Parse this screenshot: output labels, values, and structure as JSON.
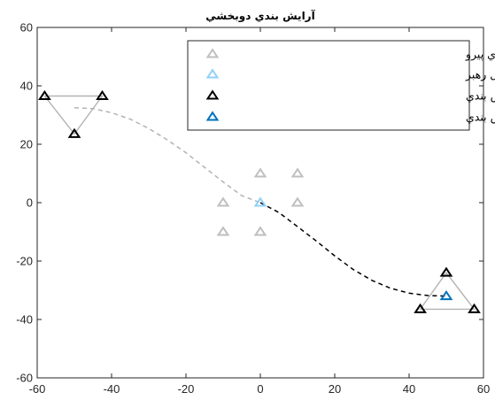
{
  "chart_data": {
    "type": "scatter",
    "title": "آرايش بندي دوبخشي",
    "xlabel": "",
    "ylabel": "",
    "xlim": [
      -60,
      60
    ],
    "ylim": [
      -60,
      60
    ],
    "x_ticks": [
      -60,
      -40,
      -20,
      0,
      20,
      40,
      60
    ],
    "y_ticks": [
      -60,
      -40,
      -20,
      0,
      20,
      40,
      60
    ],
    "x_tick_labels": [
      "-60",
      "-40",
      "-20",
      "0",
      "20",
      "40",
      "60"
    ],
    "y_tick_labels": [
      "-60",
      "-40",
      "-20",
      "0",
      "20",
      "40",
      "60"
    ],
    "grid": false,
    "legend_position": "top-right",
    "series": [
      {
        "name": "موقعيت اوليه عامل هاي پيرو",
        "marker": "triangle",
        "color": "#bfbfbf",
        "points": [
          [
            -10,
            0
          ],
          [
            -10,
            -10
          ],
          [
            0,
            10
          ],
          [
            0,
            -10
          ],
          [
            10,
            10
          ],
          [
            10,
            0
          ]
        ]
      },
      {
        "name": "موقعيت اوليه عامل رهبر",
        "marker": "triangle",
        "color": "#8fd1f5",
        "points": [
          [
            0,
            0
          ]
        ]
      },
      {
        "name": "موقعيت عامل هاي پيرو پس از آرايش بندي",
        "marker": "triangle",
        "color": "#000000",
        "points": [
          [
            -58,
            36.5
          ],
          [
            -42.5,
            36.5
          ],
          [
            -50,
            23.5
          ],
          [
            43,
            -36.5
          ],
          [
            57.5,
            -36.5
          ],
          [
            50,
            -24
          ]
        ]
      },
      {
        "name": "موقعيت عامل رهبر پس از آرايش بندي",
        "marker": "triangle",
        "color": "#0072bd",
        "points": [
          [
            50,
            -32
          ]
        ]
      }
    ],
    "formations": [
      {
        "color": "#b3b3b3",
        "points": [
          [
            -58,
            36.5
          ],
          [
            -42.5,
            36.5
          ],
          [
            -50,
            23.5
          ]
        ]
      },
      {
        "color": "#b3b3b3",
        "points": [
          [
            43,
            -36.5
          ],
          [
            57.5,
            -36.5
          ],
          [
            50,
            -24
          ]
        ]
      }
    ],
    "paths": [
      {
        "color": "#b3b3b3",
        "style": "dashed",
        "points": [
          [
            -50,
            32.5
          ],
          [
            -45,
            32.2
          ],
          [
            -40,
            30.8
          ],
          [
            -35,
            28.6
          ],
          [
            -30,
            25.4
          ],
          [
            -25,
            21.5
          ],
          [
            -20,
            17.1
          ],
          [
            -15,
            12.1
          ],
          [
            -10,
            7.1
          ],
          [
            -5,
            2.4
          ],
          [
            0,
            0
          ]
        ]
      },
      {
        "color": "#000000",
        "style": "dashed",
        "points": [
          [
            0,
            0
          ],
          [
            5,
            -3.4
          ],
          [
            10,
            -8.2
          ],
          [
            15,
            -13.1
          ],
          [
            20,
            -18.2
          ],
          [
            25,
            -22.9
          ],
          [
            30,
            -26.6
          ],
          [
            35,
            -29.3
          ],
          [
            40,
            -31.0
          ],
          [
            45,
            -31.8
          ],
          [
            50,
            -32
          ]
        ]
      }
    ]
  }
}
